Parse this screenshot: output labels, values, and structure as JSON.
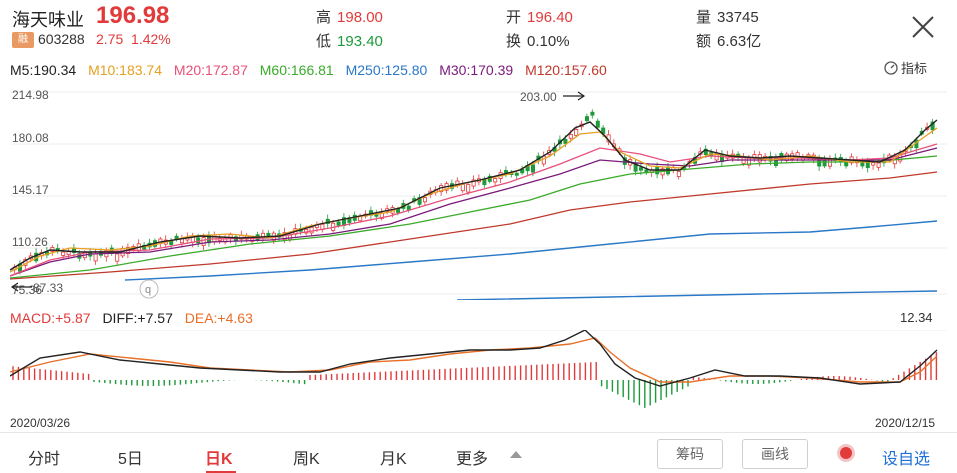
{
  "stock": {
    "name": "海天味业",
    "price": "196.98",
    "badge": "融",
    "code": "603288",
    "change": "2.75",
    "change_pct": "1.42%"
  },
  "stats": {
    "high_label": "高",
    "high": "198.00",
    "low_label": "低",
    "low": "193.40",
    "open_label": "开",
    "open": "196.40",
    "turnover_label": "换",
    "turnover": "0.10%",
    "volume_label": "量",
    "volume": "33745",
    "amount_label": "额",
    "amount": "6.63亿"
  },
  "ma": [
    {
      "label": "M5:190.34",
      "color": "#222222"
    },
    {
      "label": "M10:183.74",
      "color": "#e6a01e"
    },
    {
      "label": "M20:172.87",
      "color": "#e8507a"
    },
    {
      "label": "M60:166.81",
      "color": "#3aaa2a"
    },
    {
      "label": "M250:125.80",
      "color": "#2a78c8"
    },
    {
      "label": "M30:170.39",
      "color": "#7a1a7a"
    },
    {
      "label": "M120:157.60",
      "color": "#c0392b"
    }
  ],
  "indicator_label": "指标",
  "chart": {
    "y_ticks": [
      "214.98",
      "180.08",
      "145.17",
      "110.26",
      "75.36"
    ],
    "high_marker": "203.00",
    "low_marker": "87.33",
    "q_label": "q"
  },
  "macd": {
    "macd_label": "MACD:+5.87",
    "diff_label": "DIFF:+7.57",
    "dea_label": "DEA:+4.63",
    "max": "12.34"
  },
  "dates": {
    "start": "2020/03/26",
    "end": "2020/12/15"
  },
  "tabs": [
    "分时",
    "5日",
    "日K",
    "周K",
    "月K",
    "更多"
  ],
  "buttons": {
    "chips": "筹码",
    "draw": "画线",
    "custom": "设自选"
  },
  "colors": {
    "up": "#e23a3a",
    "down": "#1e9a3a",
    "accent": "#1e6fd9"
  }
}
